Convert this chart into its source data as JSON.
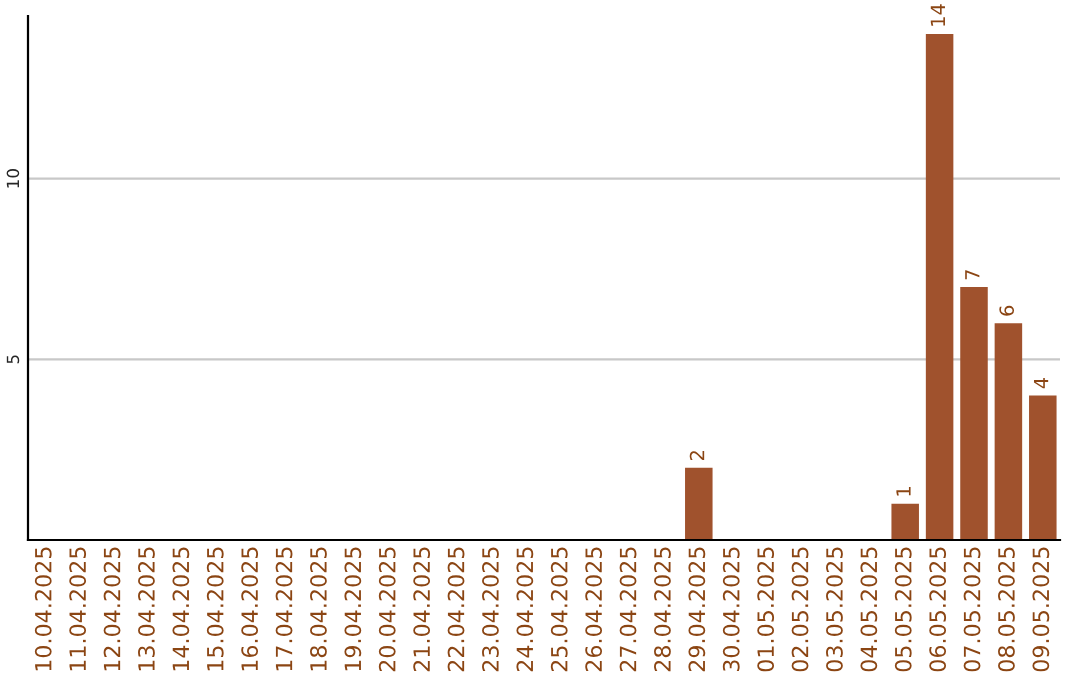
{
  "chart_data": {
    "type": "bar",
    "categories": [
      "10.04.2025",
      "11.04.2025",
      "12.04.2025",
      "13.04.2025",
      "14.04.2025",
      "15.04.2025",
      "16.04.2025",
      "17.04.2025",
      "18.04.2025",
      "19.04.2025",
      "20.04.2025",
      "21.04.2025",
      "22.04.2025",
      "23.04.2025",
      "24.04.2025",
      "25.04.2025",
      "26.04.2025",
      "27.04.2025",
      "28.04.2025",
      "29.04.2025",
      "30.04.2025",
      "01.05.2025",
      "02.05.2025",
      "03.05.2025",
      "04.05.2025",
      "05.05.2025",
      "06.05.2025",
      "07.05.2025",
      "08.05.2025",
      "09.05.2025"
    ],
    "values": [
      0,
      0,
      0,
      0,
      0,
      0,
      0,
      0,
      0,
      0,
      0,
      0,
      0,
      0,
      0,
      0,
      0,
      0,
      0,
      2,
      0,
      0,
      0,
      0,
      0,
      1,
      14,
      7,
      6,
      4
    ],
    "value_labels": [
      null,
      null,
      null,
      null,
      null,
      null,
      null,
      null,
      null,
      null,
      null,
      null,
      null,
      null,
      null,
      null,
      null,
      null,
      null,
      "2",
      null,
      null,
      null,
      null,
      null,
      "1",
      "14",
      "7",
      "6",
      "4"
    ],
    "color": "#a0522d",
    "ylim": [
      0,
      14.5
    ],
    "yticks": [
      5,
      10
    ],
    "grid": "y"
  }
}
